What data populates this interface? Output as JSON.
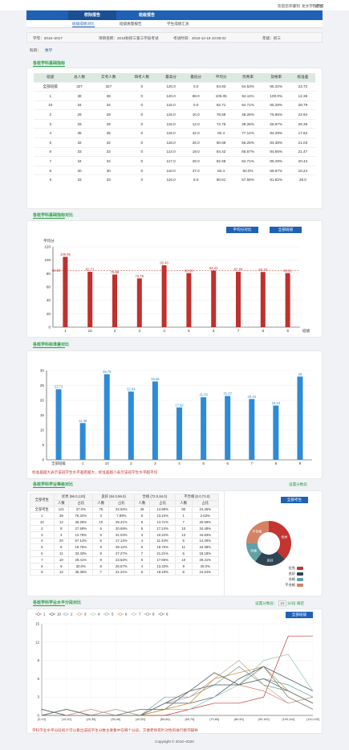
{
  "topbar": {
    "items": [
      "欢迎您",
      "邓睿钊",
      "龙文学院学校",
      "退出"
    ]
  },
  "nav": {
    "tabs": [
      "校际报告",
      "班级报告"
    ]
  },
  "subnav": {
    "items": [
      "班级成绩对比",
      "班级质量报告",
      "学生成绩汇总"
    ]
  },
  "info": {
    "year": "学年：2016~2017",
    "project": "项目名称：2016秋初三第三学段考试",
    "time": "考试时间：2016-12-19 10:06:02",
    "grade": "年级：初三"
  },
  "subject": {
    "label": "科目：",
    "value": "数学"
  },
  "sections": {
    "basic_table": "各班学科基础指标",
    "basic_chart": "各班学科基础指标对比",
    "std_chart": "各班学科标准差对比",
    "level_table": "各班学科学业等级对比",
    "score_chart": "各班学科学业水平分段对比"
  },
  "basic_table": {
    "headers": [
      "班级",
      "总人数",
      "实考人数",
      "缺考人数",
      "最高分",
      "最低分",
      "平均分",
      "优秀率",
      "及格率",
      "标准差"
    ],
    "rows": [
      [
        "全部班级",
        "327",
        "327",
        "0",
        "120.0",
        "0.0",
        "84.83",
        "64.53%",
        "85.32%",
        "23.72"
      ],
      [
        "1",
        "38",
        "38",
        "0",
        "120.0",
        "68.0",
        "105.05",
        "92.11%",
        "100.0%",
        "12.36"
      ],
      [
        "10",
        "34",
        "34",
        "0",
        "116.0",
        "0.0",
        "82.71",
        "64.71%",
        "85.29%",
        "28.79"
      ],
      [
        "2",
        "29",
        "29",
        "0",
        "115.0",
        "10.0",
        "78.59",
        "48.28%",
        "75.86%",
        "22.94"
      ],
      [
        "3",
        "29",
        "29",
        "0",
        "115.0",
        "12.0",
        "72.76",
        "48.28%",
        "68.97%",
        "26.35"
      ],
      [
        "4",
        "35",
        "35",
        "0",
        "115.0",
        "42.0",
        "92.4",
        "77.14%",
        "94.29%",
        "17.62"
      ],
      [
        "5",
        "32",
        "32",
        "0",
        "118.0",
        "26.0",
        "80.69",
        "56.25%",
        "84.38%",
        "21.03"
      ],
      [
        "6",
        "33",
        "33",
        "0",
        "114.0",
        "19.0",
        "84.42",
        "66.67%",
        "84.85%",
        "21.47"
      ],
      [
        "7",
        "34",
        "34",
        "0",
        "117.0",
        "28.0",
        "82.68",
        "64.71%",
        "85.29%",
        "20.44"
      ],
      [
        "8",
        "30",
        "30",
        "0",
        "110.0",
        "37.0",
        "82.4",
        "60.0%",
        "86.67%",
        "18.24"
      ],
      [
        "9",
        "33",
        "33",
        "0",
        "116.0",
        "9.0",
        "80.61",
        "57.58%",
        "81.82%",
        "28.0"
      ]
    ]
  },
  "buttons": {
    "avg_compare": "平均分对比",
    "all_classes": "全部班级",
    "all_students": "全部考生",
    "settings": "设置分数段",
    "settings2": "设置分数段：",
    "interval_value": "10",
    "interval_unit": "分/段 确定"
  },
  "chart_basic": {
    "type": "bar",
    "ylabel": "平均分",
    "xlabel": "班级",
    "categories": [
      "1",
      "10",
      "2",
      "3",
      "4",
      "5",
      "6",
      "7",
      "8",
      "9"
    ],
    "values": [
      105.05,
      82.71,
      78.59,
      72.76,
      92.4,
      80.69,
      84.42,
      82.68,
      82.4,
      80.61
    ],
    "value_labels": [
      "105.05",
      "82.71",
      "78.59",
      "72.76",
      "92.40",
      "80.69",
      "84.42",
      "82.68",
      "82.40",
      "80.61"
    ],
    "baseline": 84.83,
    "baseline_label": "84.83",
    "ylim": [
      0,
      120
    ],
    "yticks": [
      "0",
      "20",
      "40",
      "60",
      "80",
      "100",
      "120"
    ],
    "color": "#c0302c"
  },
  "chart_std": {
    "type": "bar",
    "categories": [
      "全部班级",
      "1",
      "10",
      "2",
      "3",
      "4",
      "5",
      "6",
      "7",
      "8",
      "9"
    ],
    "values": [
      23.72,
      12.36,
      28.79,
      22.94,
      26.35,
      17.62,
      21.03,
      21.47,
      20.44,
      18.24,
      28.0
    ],
    "value_labels": [
      "23.72",
      "12.36",
      "28.79",
      "22.94",
      "26.35",
      "17.62",
      "21.03",
      "21.47",
      "20.44",
      "18.24",
      "28"
    ],
    "ylim": [
      0,
      30
    ],
    "yticks": [
      "0",
      "5",
      "10",
      "15",
      "20",
      "25",
      "30"
    ],
    "color": "#2e8bd6"
  },
  "std_note": "标准差越大表示该班学生水平差距越大，标准差越小表示该班学生水平越平均",
  "level_table": {
    "group_headers": [
      "全部考生",
      "优秀 (96.0,120]",
      "良好 (84.0,96.0)",
      "合格 (72.0,84.0)",
      "不合格 [0.0,72.0)"
    ],
    "sub_headers": [
      "人数",
      "占比",
      "人数",
      "占比",
      "人数",
      "占比",
      "人数",
      "占比"
    ],
    "rows": [
      [
        "全部考生",
        "121",
        "37.0%",
        "75",
        "22.94%",
        "49",
        "14.98%",
        "80",
        "24.46%"
      ],
      [
        "1",
        "29",
        "76.32%",
        "3",
        "7.89%",
        "5",
        "13.16%",
        "1",
        "2.63%"
      ],
      [
        "10",
        "12",
        "35.29%",
        "10",
        "29.41%",
        "5",
        "14.71%",
        "7",
        "20.59%"
      ],
      [
        "2",
        "8",
        "27.59%",
        "6",
        "20.69%",
        "5",
        "17.24%",
        "10",
        "34.48%"
      ],
      [
        "3",
        "4",
        "13.79%",
        "9",
        "31.03%",
        "3",
        "10.34%",
        "13",
        "44.83%"
      ],
      [
        "4",
        "20",
        "57.14%",
        "6",
        "17.14%",
        "4",
        "11.43%",
        "5",
        "14.29%"
      ],
      [
        "5",
        "6",
        "18.75%",
        "9",
        "28.12%",
        "6",
        "18.75%",
        "11",
        "34.38%"
      ],
      [
        "6",
        "11",
        "33.33%",
        "9",
        "27.27%",
        "7",
        "21.21%",
        "6",
        "18.18%"
      ],
      [
        "7",
        "10",
        "29.41%",
        "8",
        "23.53%",
        "6",
        "17.65%",
        "10",
        "29.41%"
      ],
      [
        "8",
        "9",
        "30.0%",
        "8",
        "26.67%",
        "4",
        "13.33%",
        "9",
        "30.0%"
      ],
      [
        "9",
        "12",
        "36.36%",
        "7",
        "21.21%",
        "6",
        "18.18%",
        "8",
        "24.24%"
      ]
    ]
  },
  "pie": {
    "type": "pie",
    "labels": [
      "优秀",
      "良好",
      "合格",
      "不合格"
    ],
    "values": [
      121,
      75,
      49,
      80
    ],
    "colors": [
      "#c23531",
      "#2f4554",
      "#61a0a8",
      "#d48265"
    ]
  },
  "chart_score": {
    "type": "line",
    "series_names": [
      "1",
      "10",
      "2",
      "3",
      "4",
      "5",
      "6",
      "7",
      "8",
      "9"
    ],
    "colors": [
      "#c23531",
      "#2f4554",
      "#61a0a8",
      "#d48265",
      "#91c7ae",
      "#749f83",
      "#ca8622",
      "#bda29a",
      "#6e7074",
      "#546570"
    ],
    "categories": [
      "[0,10]",
      "(10,20]",
      "(20,30]",
      "(30,40]",
      "(40,50]",
      "(50,60]",
      "(60,70]",
      "(70,80]",
      "(80,90]",
      "(90,100]",
      "(100,110]",
      "(110,120]"
    ],
    "ylim": [
      0,
      15
    ],
    "yticks": [
      "0",
      "3",
      "6",
      "9",
      "12",
      "15"
    ],
    "series": [
      [
        0,
        0,
        0,
        0,
        0,
        0,
        1,
        2,
        2,
        3,
        13,
        13
      ],
      [
        1,
        0,
        0,
        0,
        0,
        2,
        2,
        3,
        6,
        8,
        6,
        4
      ],
      [
        0,
        1,
        0,
        0,
        0,
        3,
        3,
        5,
        5,
        6,
        5,
        3
      ],
      [
        0,
        0,
        1,
        0,
        0,
        2,
        4,
        7,
        5,
        4,
        2,
        3
      ],
      [
        0,
        0,
        0,
        0,
        1,
        1,
        1,
        3,
        5,
        9,
        10,
        4
      ],
      [
        0,
        0,
        0,
        1,
        0,
        1,
        4,
        5,
        8,
        5,
        4,
        2
      ],
      [
        0,
        1,
        0,
        0,
        0,
        1,
        2,
        6,
        7,
        8,
        4,
        2
      ],
      [
        0,
        0,
        0,
        1,
        0,
        2,
        3,
        6,
        9,
        5,
        2,
        3
      ],
      [
        0,
        0,
        0,
        0,
        1,
        1,
        4,
        5,
        5,
        8,
        3,
        1
      ],
      [
        0,
        1,
        0,
        0,
        0,
        2,
        4,
        7,
        5,
        6,
        4,
        2
      ]
    ]
  },
  "score_note": "学科学业水平分段统计可以看出该班学生分数主要集中在哪个分段，方便老师有针对性的进行教学辅导",
  "footer": "Copyright © 2016~2020"
}
